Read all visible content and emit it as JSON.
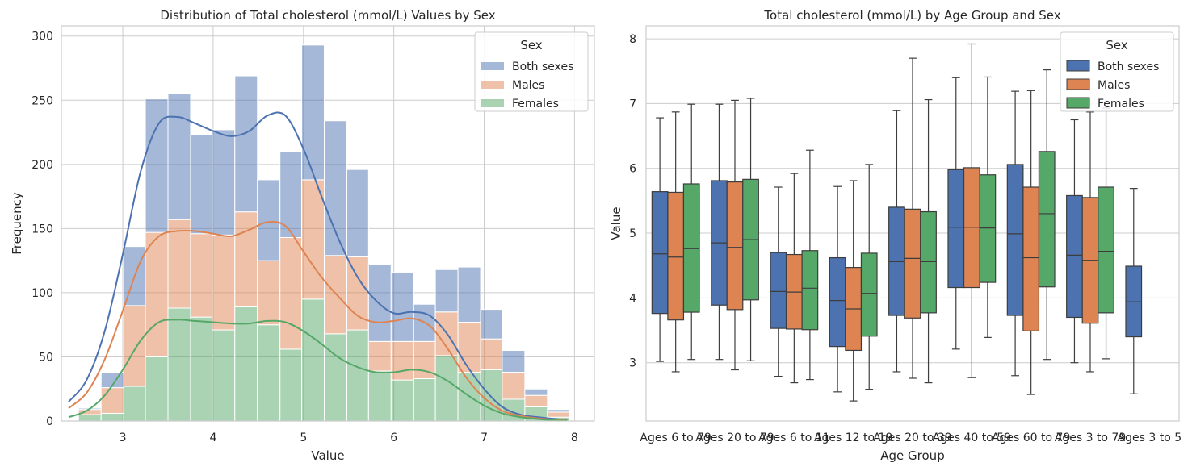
{
  "colors": {
    "hist": [
      "#4c72b0",
      "#dd8452",
      "#55a868"
    ],
    "box": [
      "#4c72b0",
      "#dd8452",
      "#55a868"
    ],
    "boxEdge": "#3d3d3d",
    "grid": "#cccccc",
    "background": "#ffffff"
  },
  "chart_data": [
    {
      "type": "bar",
      "subtype": "stacked-histogram-with-kde",
      "title": "Distribution of Total cholesterol (mmol/L) Values by Sex",
      "xlabel": "Value",
      "ylabel": "Frequency",
      "xlim": [
        2.32,
        8.22
      ],
      "ylim": [
        0,
        308
      ],
      "xticks": [
        3,
        4,
        5,
        6,
        7,
        8
      ],
      "yticks": [
        0,
        50,
        100,
        150,
        200,
        250,
        300
      ],
      "grid": true,
      "legend": {
        "title": "Sex",
        "position": "top-right",
        "entries": [
          "Both sexes",
          "Males",
          "Females"
        ]
      },
      "bin_edges": [
        2.51,
        2.76,
        3.01,
        3.25,
        3.5,
        3.75,
        3.99,
        4.24,
        4.49,
        4.74,
        4.98,
        5.23,
        5.48,
        5.72,
        5.97,
        6.22,
        6.46,
        6.71,
        6.96,
        7.2,
        7.45,
        7.7,
        7.94
      ],
      "series": [
        {
          "name": "Females",
          "values": [
            5,
            6,
            27,
            50,
            88,
            81,
            71,
            89,
            75,
            56,
            95,
            68,
            71,
            39,
            32,
            33,
            51,
            38,
            40,
            17,
            11,
            3
          ]
        },
        {
          "name": "Males",
          "values": [
            4,
            20,
            63,
            97,
            69,
            65,
            74,
            74,
            50,
            87,
            93,
            61,
            57,
            23,
            30,
            29,
            34,
            39,
            24,
            21,
            9,
            4
          ]
        },
        {
          "name": "Both sexes",
          "values": [
            1,
            12,
            46,
            104,
            98,
            77,
            82,
            106,
            63,
            67,
            105,
            105,
            68,
            60,
            54,
            29,
            33,
            43,
            23,
            17,
            5,
            2
          ]
        }
      ],
      "kde": [
        {
          "name": "Both sexes",
          "x": [
            2.4,
            2.6,
            2.8,
            3.0,
            3.2,
            3.4,
            3.6,
            3.8,
            4.0,
            4.2,
            4.4,
            4.6,
            4.8,
            5.0,
            5.2,
            5.4,
            5.6,
            5.8,
            6.0,
            6.2,
            6.4,
            6.6,
            6.8,
            7.0,
            7.2,
            7.4,
            7.6,
            7.8,
            7.92
          ],
          "y": [
            15,
            32,
            70,
            130,
            195,
            232,
            237,
            232,
            226,
            222,
            226,
            238,
            238,
            212,
            175,
            140,
            112,
            94,
            84,
            85,
            82,
            67,
            44,
            25,
            11,
            5,
            3,
            1.5,
            1
          ]
        },
        {
          "name": "Males",
          "x": [
            2.4,
            2.6,
            2.8,
            3.0,
            3.2,
            3.4,
            3.6,
            3.8,
            4.0,
            4.2,
            4.4,
            4.6,
            4.8,
            5.0,
            5.2,
            5.4,
            5.6,
            5.8,
            6.0,
            6.2,
            6.4,
            6.6,
            6.8,
            7.0,
            7.2,
            7.4,
            7.6,
            7.8,
            7.92
          ],
          "y": [
            10,
            22,
            48,
            86,
            125,
            144,
            148,
            148,
            146,
            144,
            149,
            155,
            152,
            132,
            112,
            96,
            82,
            77,
            78,
            80,
            74,
            56,
            34,
            18,
            8,
            4,
            2,
            1,
            0.5
          ]
        },
        {
          "name": "Females",
          "x": [
            2.4,
            2.6,
            2.8,
            3.0,
            3.2,
            3.4,
            3.6,
            3.8,
            4.0,
            4.2,
            4.4,
            4.6,
            4.8,
            5.0,
            5.2,
            5.4,
            5.6,
            5.8,
            6.0,
            6.2,
            6.4,
            6.6,
            6.8,
            7.0,
            7.2,
            7.4,
            7.6,
            7.8,
            7.92
          ],
          "y": [
            3,
            8,
            20,
            40,
            63,
            77,
            79,
            78,
            77,
            76,
            76,
            78,
            77,
            70,
            60,
            49,
            42,
            38,
            38,
            40,
            38,
            31,
            21,
            12,
            6,
            3,
            1.5,
            0.5,
            0.3
          ]
        }
      ]
    },
    {
      "type": "box",
      "title": "Total cholesterol (mmol/L) by Age Group and Sex",
      "xlabel": "Age Group",
      "ylabel": "Value",
      "ylim": [
        2.1,
        8.2
      ],
      "yticks": [
        3,
        4,
        5,
        6,
        7,
        8
      ],
      "grid": true,
      "legend": {
        "title": "Sex",
        "position": "top-right",
        "entries": [
          "Both sexes",
          "Males",
          "Females"
        ]
      },
      "categories": [
        "Ages 6 to 79",
        "Ages 20 to 79",
        "Ages 6 to 11",
        "Ages 12 to 19",
        "Ages 20 to 39",
        "Ages 40 to 59",
        "Ages 60 to 79",
        "Ages 3 to 79",
        "Ages 3 to 5"
      ],
      "tick_labels": [
        "Ages 6 to 79",
        "Ages 20 to 79",
        "Ages 6 to 11",
        "Ages 12 to 19",
        "Ages 20 to 39",
        "Ages 40 to 59",
        "Ages 60 to 79",
        "Ages 3 to 79",
        "Ages 3 to 5"
      ],
      "series": [
        {
          "name": "Both sexes",
          "boxes": [
            {
              "whislo": 3.02,
              "q1": 3.76,
              "med": 4.68,
              "q3": 5.64,
              "whishi": 6.78
            },
            {
              "whislo": 3.05,
              "q1": 3.89,
              "med": 4.85,
              "q3": 5.81,
              "whishi": 6.99
            },
            {
              "whislo": 2.79,
              "q1": 3.53,
              "med": 4.1,
              "q3": 4.7,
              "whishi": 5.71
            },
            {
              "whislo": 2.55,
              "q1": 3.25,
              "med": 3.96,
              "q3": 4.62,
              "whishi": 5.72
            },
            {
              "whislo": 2.86,
              "q1": 3.73,
              "med": 4.56,
              "q3": 5.4,
              "whishi": 6.89
            },
            {
              "whislo": 3.21,
              "q1": 4.16,
              "med": 5.09,
              "q3": 5.98,
              "whishi": 7.4
            },
            {
              "whislo": 2.8,
              "q1": 3.73,
              "med": 4.99,
              "q3": 6.06,
              "whishi": 7.19
            },
            {
              "whislo": 3.0,
              "q1": 3.7,
              "med": 4.66,
              "q3": 5.58,
              "whishi": 6.75
            },
            {
              "whislo": 2.52,
              "q1": 3.4,
              "med": 3.94,
              "q3": 4.49,
              "whishi": 5.69
            }
          ]
        },
        {
          "name": "Males",
          "boxes": [
            {
              "whislo": 2.86,
              "q1": 3.66,
              "med": 4.63,
              "q3": 5.63,
              "whishi": 6.87
            },
            {
              "whislo": 2.89,
              "q1": 3.82,
              "med": 4.78,
              "q3": 5.79,
              "whishi": 7.05
            },
            {
              "whislo": 2.69,
              "q1": 3.52,
              "med": 4.09,
              "q3": 4.67,
              "whishi": 5.92
            },
            {
              "whislo": 2.41,
              "q1": 3.19,
              "med": 3.83,
              "q3": 4.47,
              "whishi": 5.81
            },
            {
              "whislo": 2.76,
              "q1": 3.69,
              "med": 4.61,
              "q3": 5.37,
              "whishi": 7.7
            },
            {
              "whislo": 2.77,
              "q1": 4.16,
              "med": 5.09,
              "q3": 6.01,
              "whishi": 7.92
            },
            {
              "whislo": 2.51,
              "q1": 3.49,
              "med": 4.62,
              "q3": 5.71,
              "whishi": 7.2
            },
            {
              "whislo": 2.86,
              "q1": 3.61,
              "med": 4.58,
              "q3": 5.55,
              "whishi": 6.87
            }
          ]
        },
        {
          "name": "Females",
          "boxes": [
            {
              "whislo": 3.05,
              "q1": 3.78,
              "med": 4.76,
              "q3": 5.76,
              "whishi": 6.99
            },
            {
              "whislo": 3.03,
              "q1": 3.97,
              "med": 4.9,
              "q3": 5.83,
              "whishi": 7.08
            },
            {
              "whislo": 2.74,
              "q1": 3.51,
              "med": 4.15,
              "q3": 4.73,
              "whishi": 6.28
            },
            {
              "whislo": 2.59,
              "q1": 3.41,
              "med": 4.07,
              "q3": 4.69,
              "whishi": 6.06
            },
            {
              "whislo": 2.69,
              "q1": 3.77,
              "med": 4.56,
              "q3": 5.33,
              "whishi": 7.06
            },
            {
              "whislo": 3.39,
              "q1": 4.24,
              "med": 5.08,
              "q3": 5.9,
              "whishi": 7.41
            },
            {
              "whislo": 3.05,
              "q1": 4.17,
              "med": 5.3,
              "q3": 6.26,
              "whishi": 7.52
            },
            {
              "whislo": 3.06,
              "q1": 3.77,
              "med": 4.72,
              "q3": 5.71,
              "whishi": 6.93
            }
          ]
        }
      ]
    }
  ]
}
